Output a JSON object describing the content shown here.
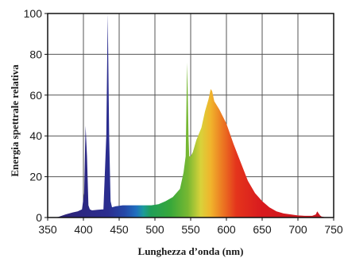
{
  "chart_data": {
    "type": "area",
    "title": "",
    "xlabel": "Lunghezza d’onda (nm)",
    "ylabel": "Energia spettrale relativa",
    "xlim": [
      350,
      750
    ],
    "ylim": [
      0,
      100
    ],
    "x_ticks": [
      "350",
      "400",
      "450",
      "500",
      "550",
      "600",
      "650",
      "700",
      "750"
    ],
    "y_ticks": [
      "0",
      "20",
      "40",
      "60",
      "80",
      "100"
    ],
    "grid": true,
    "legend": "none",
    "fill": "visible-spectrum gradient (violet to red)",
    "series": [
      {
        "x": [
          358,
          365,
          375,
          385,
          392,
          398,
          401,
          403,
          405,
          407,
          409,
          412,
          420,
          428,
          432,
          434,
          436,
          438,
          440,
          445,
          455,
          470,
          485,
          495,
          505,
          515,
          525,
          535,
          540,
          543,
          545,
          546,
          547,
          548,
          550,
          553,
          558,
          565,
          570,
          575,
          578,
          580,
          583,
          590,
          600,
          610,
          620,
          630,
          640,
          650,
          660,
          670,
          680,
          690,
          700,
          710,
          720,
          725,
          727,
          729,
          731,
          733,
          740
        ],
        "y": [
          0,
          0.3,
          1.5,
          2.5,
          3,
          4,
          12,
          45,
          30,
          6,
          4,
          3.5,
          3.8,
          4,
          40,
          100,
          40,
          8,
          5,
          5.5,
          6,
          6,
          6,
          6,
          6.5,
          8,
          10,
          14,
          22,
          30,
          76,
          60,
          40,
          30,
          30,
          32,
          38,
          44,
          52,
          58,
          63,
          62,
          57,
          53,
          46,
          36,
          27,
          18,
          12,
          8,
          5,
          3,
          2,
          1.5,
          1,
          0.8,
          0.8,
          1.5,
          3,
          2,
          1,
          0.5,
          0
        ]
      }
    ]
  }
}
